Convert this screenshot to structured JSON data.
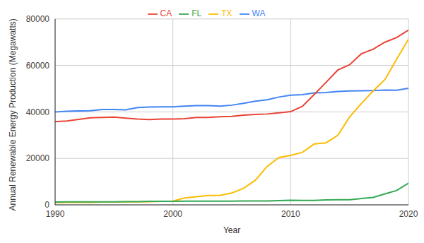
{
  "chart_data": {
    "type": "line",
    "x_label": "Year",
    "y_label": "Annual Renewable Energy Production (Megawatts)",
    "x": [
      1990,
      1991,
      1992,
      1993,
      1994,
      1995,
      1996,
      1997,
      1998,
      1999,
      2000,
      2001,
      2002,
      2003,
      2004,
      2005,
      2006,
      2007,
      2008,
      2009,
      2010,
      2011,
      2012,
      2013,
      2014,
      2015,
      2016,
      2017,
      2018,
      2019,
      2020
    ],
    "series": [
      {
        "name": "WA",
        "color": "#4285f4",
        "values": [
          40000,
          40300,
          40400,
          40500,
          41000,
          41000,
          40900,
          41900,
          42100,
          42200,
          42200,
          42500,
          42700,
          42700,
          42500,
          42900,
          43700,
          44600,
          45200,
          46400,
          47200,
          47400,
          48200,
          48300,
          48800,
          49000,
          49100,
          49200,
          49400,
          49300,
          50200
        ]
      },
      {
        "name": "CA",
        "color": "#ea4335",
        "values": [
          35800,
          36100,
          36800,
          37500,
          37600,
          37800,
          37300,
          36900,
          36700,
          36900,
          36900,
          37100,
          37600,
          37600,
          37900,
          38100,
          38600,
          38900,
          39100,
          39600,
          40100,
          42400,
          47500,
          52700,
          58000,
          60300,
          65000,
          67000,
          70000,
          72000,
          75200
        ]
      },
      {
        "name": "TX",
        "color": "#fbbc04",
        "values": [
          1000,
          1100,
          1100,
          1100,
          1200,
          1200,
          1300,
          1300,
          1400,
          1500,
          1600,
          3000,
          3500,
          4000,
          4100,
          5100,
          7100,
          10600,
          16500,
          20400,
          21300,
          22600,
          26200,
          26700,
          29900,
          37800,
          43600,
          49000,
          53900,
          62700,
          71300
        ]
      },
      {
        "name": "FL",
        "color": "#34a853",
        "values": [
          1200,
          1300,
          1300,
          1300,
          1300,
          1300,
          1400,
          1400,
          1500,
          1500,
          1500,
          1600,
          1600,
          1600,
          1600,
          1600,
          1700,
          1700,
          1700,
          1800,
          2000,
          1900,
          1900,
          2100,
          2200,
          2200,
          2700,
          3200,
          4700,
          6200,
          9300
        ]
      }
    ],
    "xlim": [
      1990,
      2020
    ],
    "xticks": [
      1990,
      2000,
      2010,
      2020
    ],
    "ylim": [
      0,
      80000
    ],
    "yticks": [
      0,
      20000,
      40000,
      60000,
      80000
    ],
    "grid": true,
    "legend": "top"
  }
}
